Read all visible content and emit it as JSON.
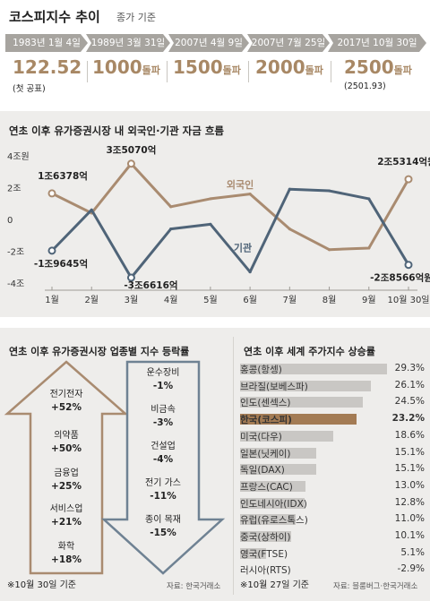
{
  "header": {
    "title": "코스피지수 추이",
    "subtitle": "종가 기준"
  },
  "timeline": [
    {
      "date": "1983년 1월 4일",
      "value": "122.52",
      "unit": "",
      "note": "(첫 공표)"
    },
    {
      "date": "1989년 3월 31일",
      "value": "1000",
      "unit": "돌파",
      "note": ""
    },
    {
      "date": "2007년 4월 9일",
      "value": "1500",
      "unit": "돌파",
      "note": ""
    },
    {
      "date": "2007년 7월 25일",
      "value": "2000",
      "unit": "돌파",
      "note": ""
    },
    {
      "date": "2017년 10월 30일",
      "value": "2500",
      "unit": "돌파",
      "note": "(2501.93)"
    }
  ],
  "colors": {
    "foreign": "#a98b70",
    "institution": "#4f6478",
    "highlight": "#a37b54",
    "bar": "#c9c7c4",
    "accent_text": "#a88865"
  },
  "chart_data": [
    {
      "type": "line",
      "title": "연초 이후 유가증권시장 내 외국인·기관 자금 흐름",
      "categories": [
        "1월",
        "2월",
        "3월",
        "4월",
        "5월",
        "6월",
        "7월",
        "8월",
        "9월",
        "10월 30일"
      ],
      "ylim": [
        -4,
        4
      ],
      "yticks": [
        "4조원",
        "2조",
        "0",
        "-2조",
        "-4조"
      ],
      "ytick_values": [
        4,
        2,
        0,
        -2,
        -4
      ],
      "grid": false,
      "series": [
        {
          "name": "외국인",
          "values": [
            1.6378,
            0.4,
            3.507,
            0.8,
            1.3,
            1.6,
            -0.6,
            -1.9,
            -1.8,
            2.5314
          ]
        },
        {
          "name": "기관",
          "values": [
            -1.9645,
            0.6,
            -3.6616,
            -0.6,
            -0.3,
            -3.3,
            1.9,
            1.8,
            1.3,
            -2.8566
          ]
        }
      ],
      "annotations": [
        {
          "text": "1조6378억",
          "series": 0,
          "index": 0
        },
        {
          "text": "3조5070억",
          "series": 0,
          "index": 2
        },
        {
          "text": "2조5314억원",
          "series": 0,
          "index": 9
        },
        {
          "text": "-1조9645억",
          "series": 1,
          "index": 0
        },
        {
          "text": "-3조6616억",
          "series": 1,
          "index": 2
        },
        {
          "text": "-2조8566억원",
          "series": 1,
          "index": 9
        }
      ]
    },
    {
      "type": "table",
      "title": "연초 이후 유가증권시장 업종별 지수 등락률",
      "up": [
        {
          "name": "전기전자",
          "value": "+52%"
        },
        {
          "name": "의약품",
          "value": "+50%"
        },
        {
          "name": "금융업",
          "value": "+25%"
        },
        {
          "name": "서비스업",
          "value": "+21%"
        },
        {
          "name": "화학",
          "value": "+18%"
        }
      ],
      "down": [
        {
          "name": "운수장비",
          "value": "-1%"
        },
        {
          "name": "비금속",
          "value": "-3%"
        },
        {
          "name": "건설업",
          "value": "-4%"
        },
        {
          "name": "전기 가스",
          "value": "-11%"
        },
        {
          "name": "종이 목재",
          "value": "-15%"
        }
      ],
      "note": "※10월 30일 기준",
      "source": "자료: 한국거래소"
    },
    {
      "type": "bar",
      "title": "연초 이후 세계 주가지수 상승률",
      "categories": [
        "홍콩(항셍)",
        "브라질(보베스파)",
        "인도(센섹스)",
        "한국(코스피)",
        "미국(다우)",
        "일본(닛케이)",
        "독일(DAX)",
        "프랑스(CAC)",
        "인도네시아(IDX)",
        "유럽(유로스톡스)",
        "중국(상하이)",
        "영국(FTSE)",
        "러시아(RTS)"
      ],
      "values": [
        29.3,
        26.1,
        24.5,
        23.2,
        18.6,
        15.1,
        15.1,
        13.0,
        12.8,
        11.0,
        10.1,
        5.1,
        -2.9
      ],
      "labels": [
        "29.3%",
        "26.1%",
        "24.5%",
        "23.2%",
        "18.6%",
        "15.1%",
        "15.1%",
        "13.0%",
        "12.8%",
        "11.0%",
        "10.1%",
        "5.1%",
        "-2.9%"
      ],
      "highlight": "한국(코스피)",
      "note": "※10월 27일 기준",
      "source": "자료: 블룸버그·한국거래소"
    }
  ]
}
